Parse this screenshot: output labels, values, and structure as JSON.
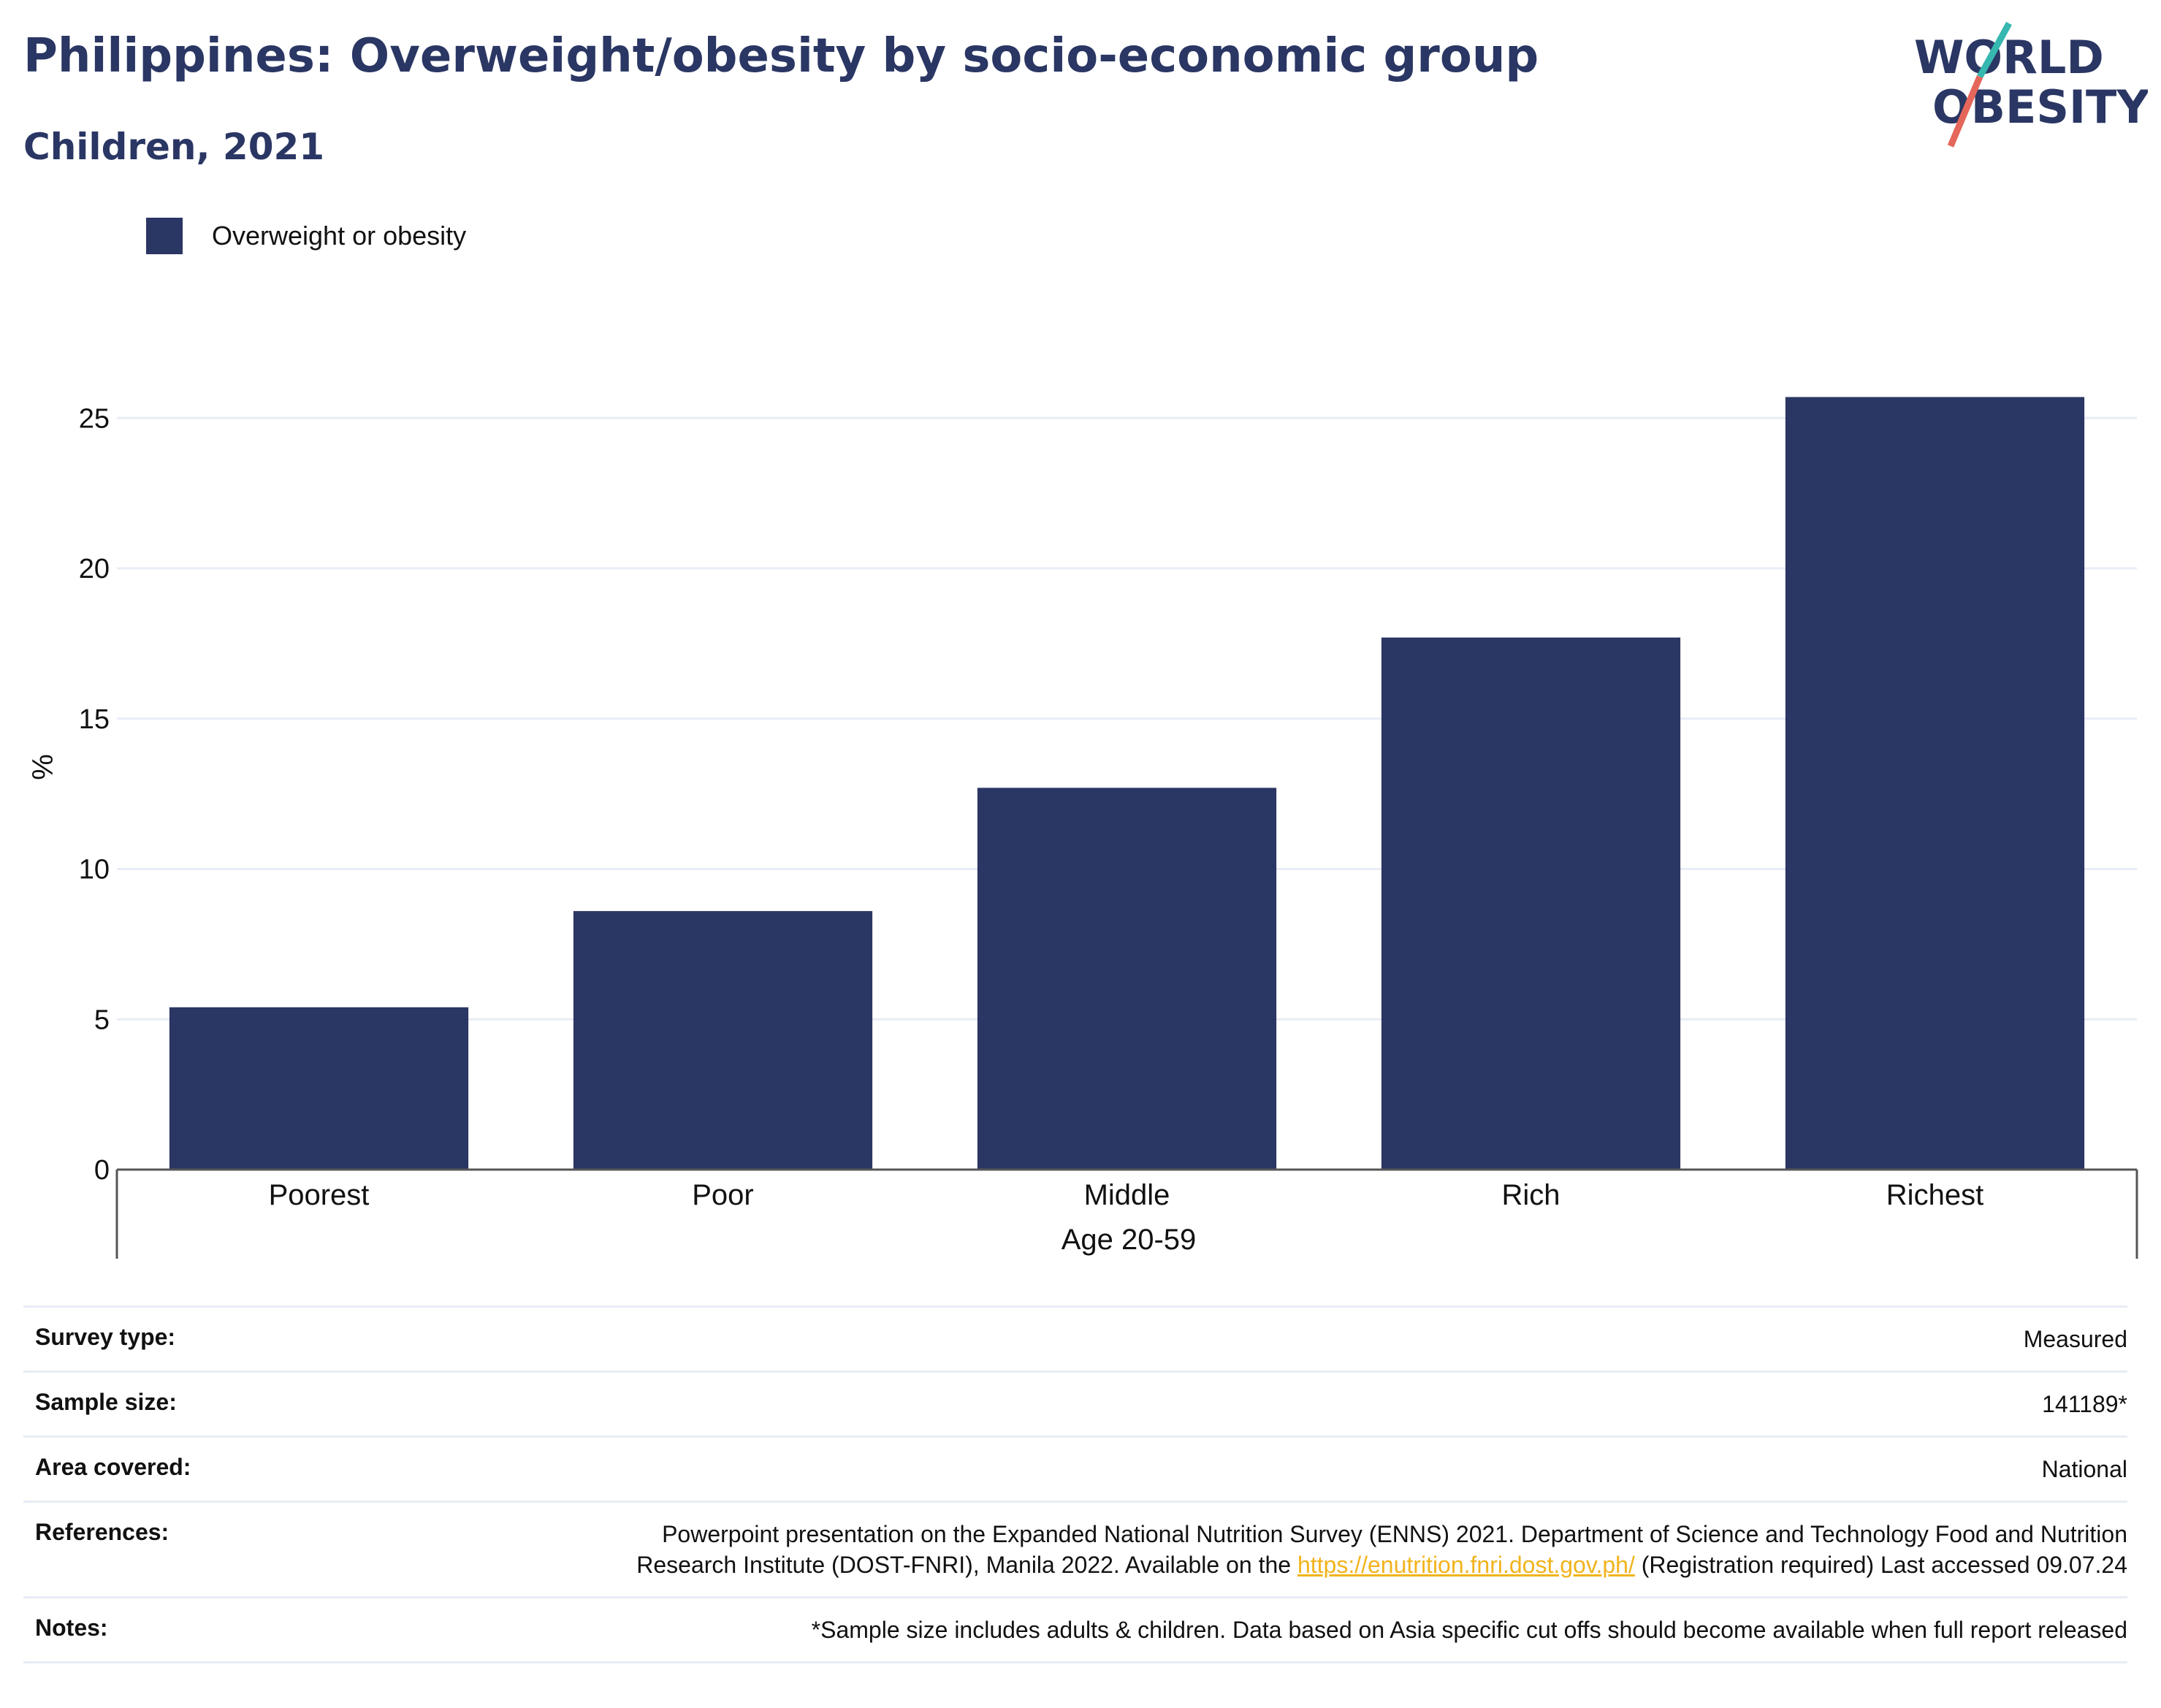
{
  "header": {
    "title": "Philippines: Overweight/obesity by socio-economic group",
    "subtitle": "Children, 2021"
  },
  "logo": {
    "line1": "WORLD",
    "line2": "OBESITY",
    "colors": {
      "text": "#2a3663",
      "slash_top": "#36b7b0",
      "slash_bottom": "#e5665a"
    }
  },
  "legend": {
    "label": "Overweight or obesity",
    "color": "#2a3663"
  },
  "chart_data": {
    "type": "bar",
    "categories": [
      "Poorest",
      "Poor",
      "Middle",
      "Rich",
      "Richest"
    ],
    "series": [
      {
        "name": "Overweight or obesity",
        "values": [
          5.4,
          8.6,
          12.7,
          17.7,
          25.7
        ],
        "color": "#2a3663"
      }
    ],
    "xlabel": "Age 20-59",
    "ylabel": "%",
    "ylim": [
      0,
      27
    ],
    "yticks": [
      0,
      5,
      10,
      15,
      20,
      25
    ],
    "grid": true,
    "legend_position": "top-left"
  },
  "meta": {
    "rows": [
      {
        "key": "Survey type:",
        "value": "Measured"
      },
      {
        "key": "Sample size:",
        "value": "141189*"
      },
      {
        "key": "Area covered:",
        "value": "National"
      },
      {
        "key": "References:",
        "value_before": "Powerpoint presentation on the Expanded National Nutrition Survey (ENNS) 2021. Department of Science and Technology Food and Nutrition Research Institute (DOST-FNRI), Manila 2022. Available on the ",
        "link": "https://enutrition.fnri.dost.gov.ph/",
        "value_after": " (Registration required) Last accessed 09.07.24"
      },
      {
        "key": "Notes:",
        "value": "*Sample size includes adults & children. Data based on Asia specific cut offs should become available when full report released"
      }
    ]
  }
}
